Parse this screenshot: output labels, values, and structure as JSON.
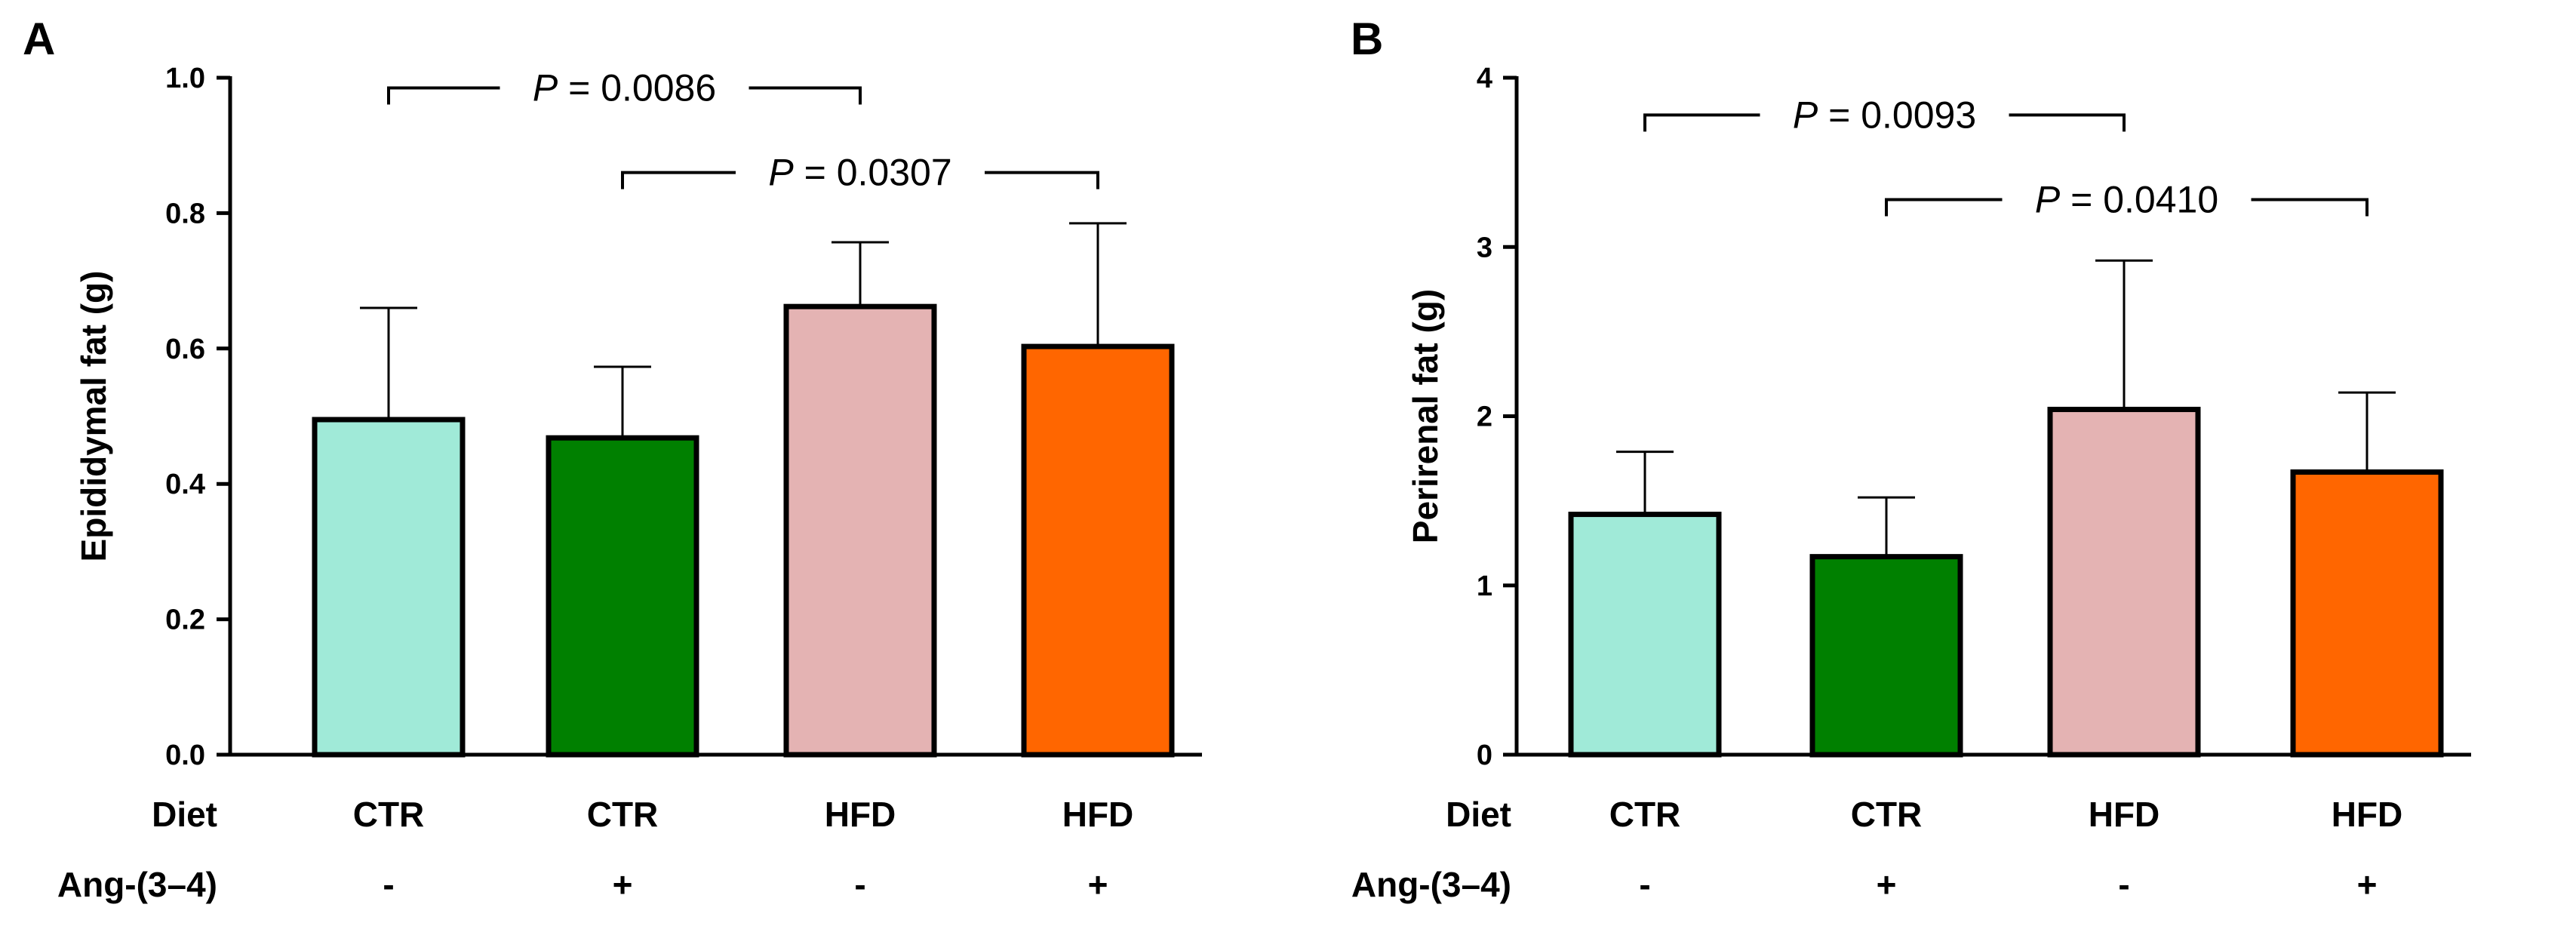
{
  "chart_data": [
    {
      "type": "bar",
      "panel": "A",
      "ylabel": "Epididymal fat (g)",
      "ylim": [
        0,
        1.0
      ],
      "yticks": [
        "0.0",
        "0.2",
        "0.4",
        "0.6",
        "0.8",
        "1.0"
      ],
      "yticks_values": [
        0,
        0.2,
        0.4,
        0.6,
        0.8,
        1.0
      ],
      "row_labels": [
        "Diet",
        "Ang-(3–4)"
      ],
      "categories": [
        "CTR",
        "CTR",
        "HFD",
        "HFD"
      ],
      "treatment": [
        "-",
        "+",
        "-",
        "+"
      ],
      "values": [
        0.495,
        0.468,
        0.662,
        0.603
      ],
      "errors": [
        0.165,
        0.105,
        0.095,
        0.182
      ],
      "colors": [
        "#a0ead8",
        "#008000",
        "#e4b3b3",
        "#ff6600"
      ],
      "comparisons": [
        {
          "from": 0,
          "to": 2,
          "prefix": "P",
          "text": " = 0.0086",
          "y": 0.985
        },
        {
          "from": 1,
          "to": 3,
          "prefix": "P",
          "text": " = 0.0307",
          "y": 0.86
        }
      ]
    },
    {
      "type": "bar",
      "panel": "B",
      "ylabel": "Perirenal fat (g)",
      "ylim": [
        0,
        4
      ],
      "yticks": [
        "0",
        "1",
        "2",
        "3",
        "4"
      ],
      "yticks_values": [
        0,
        1,
        2,
        3,
        4
      ],
      "row_labels": [
        "Diet",
        "Ang-(3–4)"
      ],
      "categories": [
        "CTR",
        "CTR",
        "HFD",
        "HFD"
      ],
      "treatment": [
        "-",
        "+",
        "-",
        "+"
      ],
      "values": [
        1.42,
        1.17,
        2.04,
        1.67
      ],
      "errors": [
        0.37,
        0.35,
        0.88,
        0.47
      ],
      "colors": [
        "#a0ead8",
        "#008000",
        "#e4b3b3",
        "#ff6600"
      ],
      "comparisons": [
        {
          "from": 0,
          "to": 2,
          "prefix": "P",
          "text": " = 0.0093",
          "y": 3.78
        },
        {
          "from": 1,
          "to": 3,
          "prefix": "P",
          "text": " = 0.0410",
          "y": 3.28
        }
      ]
    }
  ]
}
